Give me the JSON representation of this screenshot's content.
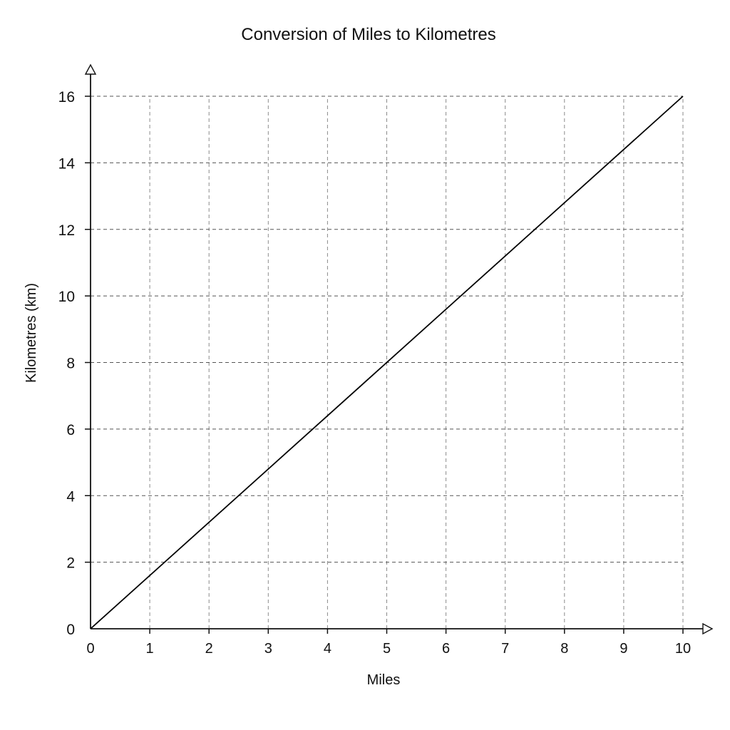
{
  "chart_data": {
    "type": "line",
    "title": "Conversion of Miles to Kilometres",
    "xlabel": "Miles",
    "ylabel": "Kilometres (km)",
    "xlim": [
      0,
      10
    ],
    "ylim": [
      0,
      16
    ],
    "x_ticks": [
      0,
      1,
      2,
      3,
      4,
      5,
      6,
      7,
      8,
      9,
      10
    ],
    "y_ticks": [
      0,
      2,
      4,
      6,
      8,
      10,
      12,
      14,
      16
    ],
    "grid": true,
    "grid_style": "dashed",
    "legend": "none",
    "series": [
      {
        "color": "#000000",
        "x": [
          0,
          10
        ],
        "y": [
          0,
          16
        ]
      }
    ]
  }
}
